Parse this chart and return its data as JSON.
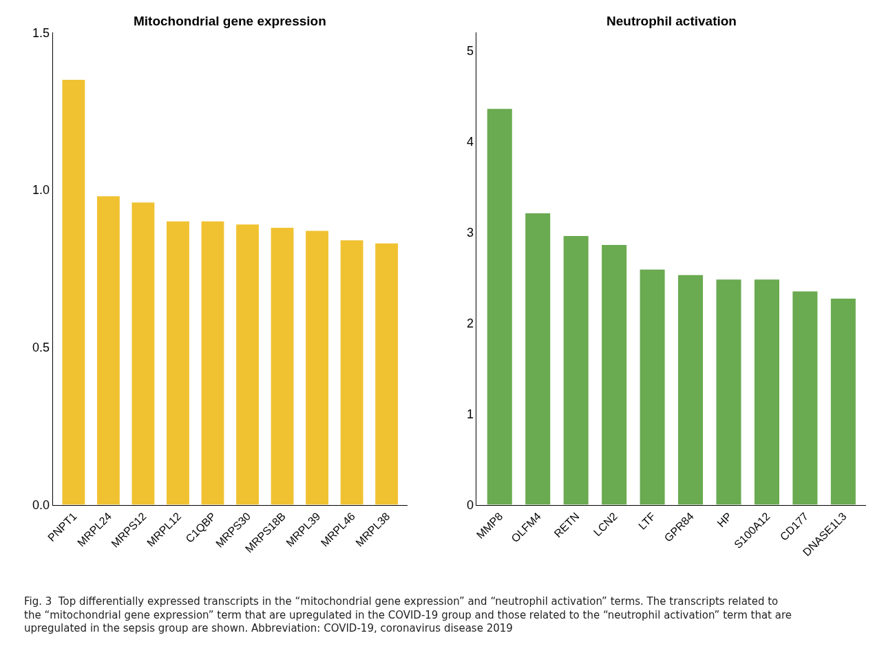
{
  "chart_data": [
    {
      "type": "bar",
      "title": "Mitochondrial gene expression",
      "categories": [
        "PNPT1",
        "MRPL24",
        "MRPS12",
        "MRPL12",
        "C1QBP",
        "MRPS30",
        "MRPS18B",
        "MRPL39",
        "MRPL46",
        "MRPL38"
      ],
      "values": [
        1.35,
        0.98,
        0.96,
        0.9,
        0.9,
        0.89,
        0.88,
        0.87,
        0.84,
        0.83
      ],
      "color": "#f0c232",
      "ylim": [
        0,
        1.5
      ],
      "yticks": [
        {
          "value": 0,
          "label": "0.0"
        },
        0.5,
        {
          "value": 1,
          "label": "1.0"
        },
        1.5
      ],
      "annotations": [
        "Fig. 3  Top differentially expressed transcripts in the “mitochondrial gene expression” and “neutrophil activation” terms. The transcripts related to the “mitochondrial gene expression” term that are upregulated in the COVID-19 group and those related to the “neutrophil activation” term that are upregulated in the sepsis group are shown. Abbreviation: COVID-19, coronavirus disease 2019"
      ]
    },
    {
      "type": "bar",
      "title": "Neutrophil activation",
      "categories": [
        "MMP8",
        "OLFM4",
        "RETN",
        "LCN2",
        "LTF",
        "GPR84",
        "HP",
        "S100A12",
        "CD177",
        "DNASE1L3"
      ],
      "values": [
        4.36,
        3.21,
        2.96,
        2.86,
        2.59,
        2.53,
        2.48,
        2.48,
        2.35,
        2.27
      ],
      "color": "#6aaa50",
      "ylim": [
        0,
        5.2
      ],
      "yticks": [
        0,
        1,
        2,
        3,
        4,
        5
      ]
    }
  ]
}
